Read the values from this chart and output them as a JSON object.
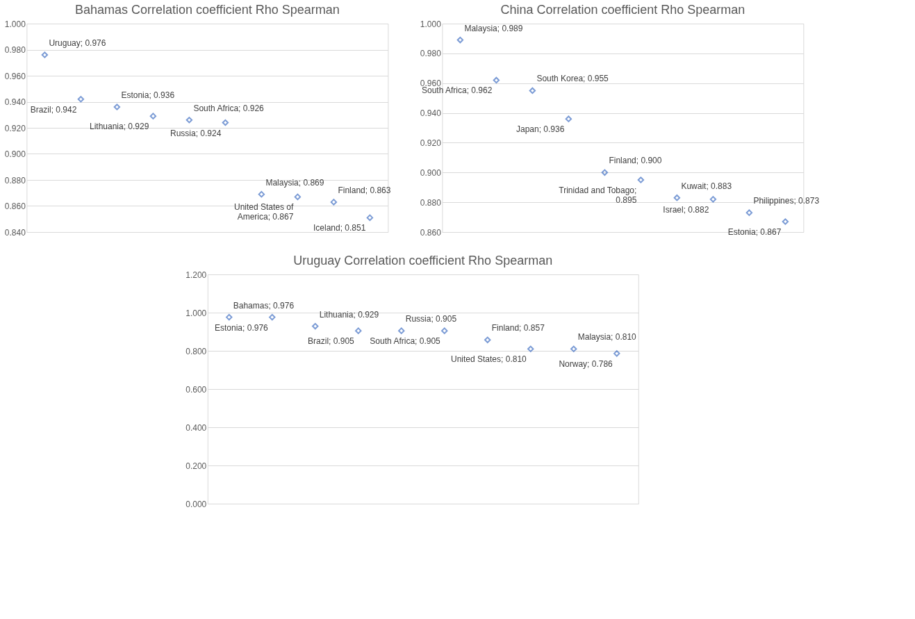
{
  "chart_data": [
    {
      "type": "scatter",
      "title": "Bahamas Correlation coefficient Rho Spearman",
      "categories": [
        null,
        null,
        null,
        null,
        null,
        null,
        null,
        null,
        null,
        null
      ],
      "values": [
        0.976,
        0.942,
        0.936,
        0.929,
        0.926,
        0.924,
        0.869,
        0.867,
        0.863,
        0.851
      ],
      "value_labels": [
        "Uruguay; 0.976",
        "Brazil; 0.942",
        "Estonia; 0.936",
        "Lithuania; 0.929",
        "South Africa; 0.926",
        "Russia; 0.924",
        "Malaysia; 0.869",
        "United States of America; 0.867",
        "Finland; 0.863",
        "Iceland; 0.851"
      ],
      "color": "#4472c4",
      "marker": "diamond",
      "grid": "y",
      "legend": false,
      "tick_labels": "y",
      "ylim": [
        0.84,
        1.0
      ],
      "yticks": [
        {
          "value": 0.84,
          "label": "0.840"
        },
        {
          "value": 0.86,
          "label": "0.860"
        },
        {
          "value": 0.88,
          "label": "0.880"
        },
        {
          "value": 0.9,
          "label": "0.900"
        },
        {
          "value": 0.92,
          "label": "0.920"
        },
        {
          "value": 0.94,
          "label": "0.940"
        },
        {
          "value": 0.96,
          "label": "0.960"
        },
        {
          "value": 0.98,
          "label": "0.980"
        },
        {
          "value": 1.0,
          "label": "1.000"
        }
      ]
    },
    {
      "type": "scatter",
      "title": "China Correlation coefficient Rho Spearman",
      "categories": [
        null,
        null,
        null,
        null,
        null,
        null,
        null,
        null,
        null,
        null
      ],
      "values": [
        0.989,
        0.962,
        0.955,
        0.936,
        0.9,
        0.895,
        0.883,
        0.882,
        0.873,
        0.867
      ],
      "value_labels": [
        "Malaysia; 0.989",
        "South Africa; 0.962",
        "South Korea; 0.955",
        "Japan; 0.936",
        "Finland; 0.900",
        "Trinidad and Tobago; 0.895",
        "Kuwait; 0.883",
        "Israel; 0.882",
        "Philippines; 0.873",
        "Estonia; 0.867"
      ],
      "color": "#4472c4",
      "marker": "diamond",
      "grid": "y",
      "legend": false,
      "tick_labels": "y",
      "ylim": [
        0.86,
        1.0
      ],
      "yticks": [
        {
          "value": 0.86,
          "label": "0.860"
        },
        {
          "value": 0.88,
          "label": "0.880"
        },
        {
          "value": 0.9,
          "label": "0.900"
        },
        {
          "value": 0.92,
          "label": "0.920"
        },
        {
          "value": 0.94,
          "label": "0.940"
        },
        {
          "value": 0.96,
          "label": "0.960"
        },
        {
          "value": 0.98,
          "label": "0.980"
        },
        {
          "value": 1.0,
          "label": "1.000"
        }
      ]
    },
    {
      "type": "scatter",
      "title": "Uruguay Correlation coefficient Rho Spearman",
      "categories": [
        null,
        null,
        null,
        null,
        null,
        null,
        null,
        null,
        null,
        null
      ],
      "values": [
        0.976,
        0.976,
        0.929,
        0.905,
        0.905,
        0.905,
        0.857,
        0.81,
        0.81,
        0.786
      ],
      "value_labels": [
        "Bahamas; 0.976",
        "Estonia; 0.976",
        "Lithuania; 0.929",
        "Brazil; 0.905",
        "Russia; 0.905",
        "South Africa; 0.905",
        "Finland; 0.857",
        "United States; 0.810",
        "Malaysia; 0.810",
        "Norway; 0.786"
      ],
      "color": "#4472c4",
      "marker": "diamond",
      "grid": "y",
      "legend": false,
      "tick_labels": "y",
      "ylim": [
        0.0,
        1.2
      ],
      "yticks": [
        {
          "value": 0.0,
          "label": "0.000"
        },
        {
          "value": 0.2,
          "label": "0.200"
        },
        {
          "value": 0.4,
          "label": "0.400"
        },
        {
          "value": 0.6,
          "label": "0.600"
        },
        {
          "value": 0.8,
          "label": "0.800"
        },
        {
          "value": 1.0,
          "label": "1.000"
        },
        {
          "value": 1.2,
          "label": "1.200"
        }
      ]
    }
  ]
}
